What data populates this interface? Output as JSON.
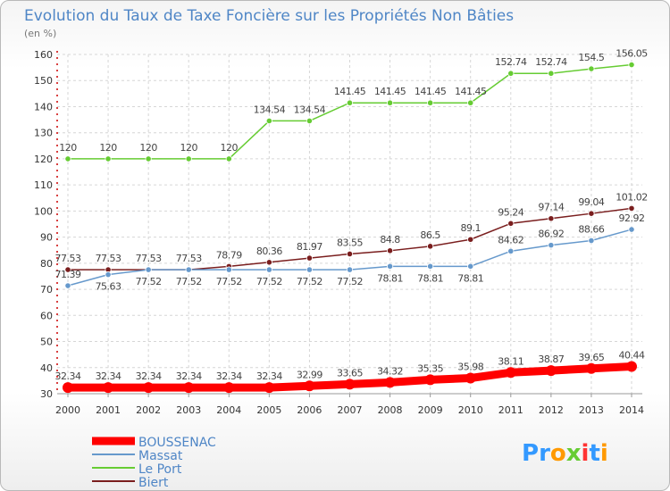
{
  "chart_data": {
    "type": "line",
    "title": "Evolution du Taux de Taxe Foncière sur les Propriétés Non Bâties",
    "unit_label": "(en %)",
    "xlabel": "",
    "ylabel": "(en %)",
    "x": [
      2000,
      2001,
      2002,
      2003,
      2004,
      2005,
      2006,
      2007,
      2008,
      2009,
      2010,
      2011,
      2012,
      2013,
      2014
    ],
    "ylim": [
      30,
      160
    ],
    "yticks": [
      30,
      40,
      50,
      60,
      70,
      80,
      90,
      100,
      110,
      120,
      130,
      140,
      150,
      160
    ],
    "grid": true,
    "legend_position": "bottom-left",
    "series": [
      {
        "name": "BOUSSENAC",
        "color": "#ff0000",
        "labels": [
          "32.34",
          "32.34",
          "32.34",
          "32.34",
          "32.34",
          "32.34",
          "32.99",
          "33.65",
          "34.32",
          "35.35",
          "35.98",
          "38.11",
          "38.87",
          "39.65",
          "40.44"
        ],
        "values": [
          32.34,
          32.34,
          32.34,
          32.34,
          32.34,
          32.34,
          32.99,
          33.65,
          34.32,
          35.35,
          35.98,
          38.11,
          38.87,
          39.65,
          40.44
        ]
      },
      {
        "name": "Massat",
        "color": "#6699cc",
        "labels": [
          "71.39",
          "75.63",
          "77.52",
          "77.52",
          "77.52",
          "77.52",
          "77.52",
          "77.52",
          "78.81",
          "78.81",
          "78.81",
          "84.62",
          "86.92",
          "88.66",
          "92.92"
        ],
        "values": [
          71.39,
          75.63,
          77.52,
          77.52,
          77.52,
          77.52,
          77.52,
          77.52,
          78.81,
          78.81,
          78.81,
          84.62,
          86.92,
          88.66,
          92.92
        ]
      },
      {
        "name": "Le Port",
        "color": "#66cc33",
        "labels": [
          "120",
          "120",
          "120",
          "120",
          "120",
          "134.54",
          "134.54",
          "141.45",
          "141.45",
          "141.45",
          "141.45",
          "152.74",
          "152.74",
          "154.5",
          "156.05"
        ],
        "values": [
          120,
          120,
          120,
          120,
          120,
          134.54,
          134.54,
          141.45,
          141.45,
          141.45,
          141.45,
          152.74,
          152.74,
          154.5,
          156.05
        ]
      },
      {
        "name": "Biert",
        "color": "#7a1e1e",
        "labels": [
          "77.53",
          "77.53",
          "77.53",
          "77.53",
          "78.79",
          "80.36",
          "81.97",
          "83.55",
          "84.8",
          "86.5",
          "89.1",
          "95.24",
          "97.14",
          "99.04",
          "101.02"
        ],
        "values": [
          77.53,
          77.53,
          77.53,
          77.53,
          78.79,
          80.36,
          81.97,
          83.55,
          84.8,
          86.5,
          89.1,
          95.24,
          97.14,
          99.04,
          101.02
        ]
      }
    ]
  },
  "logo": {
    "text": "Proxiti",
    "colors": [
      "#3399ff",
      "#ff9900",
      "#66cc33",
      "#ff3333"
    ]
  }
}
